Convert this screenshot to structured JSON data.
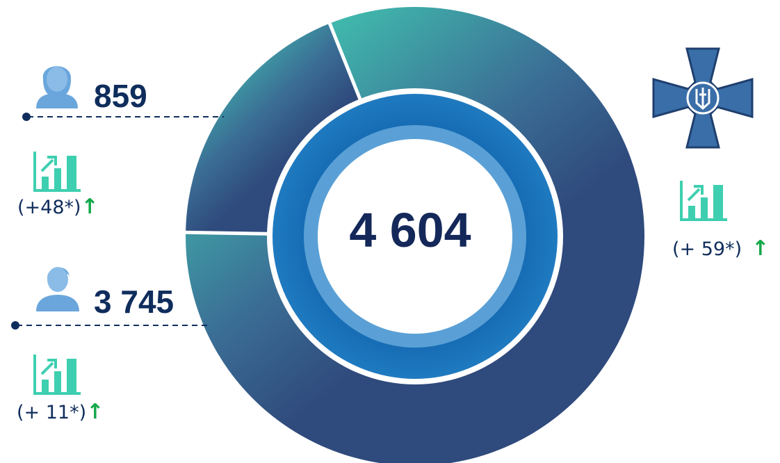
{
  "chart_data": {
    "type": "pie",
    "title": "",
    "total_label": "4 604",
    "total": 4604,
    "categories": [
      "female",
      "male"
    ],
    "values": [
      859,
      3745
    ],
    "value_labels": [
      "859",
      "3 745"
    ],
    "changes": [
      "(+48*)",
      "(+ 11*)"
    ],
    "total_change": "(+ 59*)",
    "colors": {
      "segment_light": "#41bfae",
      "segment_dark": "#2f4a7c",
      "inner_ring": "#1f6fb4",
      "inner_ring_light": "#5aa0d6",
      "text": "#0f2d5c",
      "arrow": "#14a84a",
      "chart_icon": "#3ecfb0"
    }
  },
  "icons": {
    "female": "female-person-icon",
    "male": "male-person-icon",
    "growth": "bar-chart-growth-icon",
    "emblem": "cross-trident-emblem-icon",
    "arrow": "up-arrow-icon"
  },
  "arrow_glyph": "↑"
}
